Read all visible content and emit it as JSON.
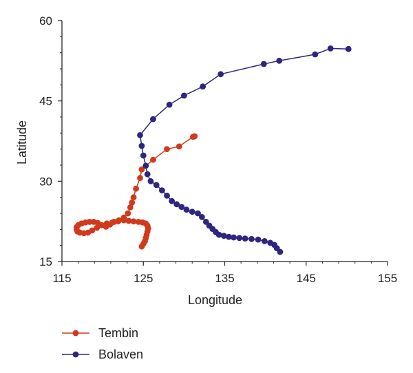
{
  "chart_data": {
    "type": "line",
    "xlabel": "Longitude",
    "ylabel": "Latitude",
    "xlim": [
      115,
      155
    ],
    "ylim": [
      15,
      60
    ],
    "xticks": [
      115,
      125,
      135,
      145,
      155
    ],
    "yticks": [
      15,
      30,
      45,
      60
    ],
    "xtick_labels": [
      "115",
      "125",
      "135",
      "145",
      "155"
    ],
    "ytick_labels": [
      "15",
      "30",
      "45",
      "60"
    ],
    "grid": false,
    "legend_position": "bottom-left",
    "series": [
      {
        "name": "Tembin",
        "color": "#d03a1c",
        "points": [
          [
            124.8,
            17.8
          ],
          [
            125.0,
            18.3
          ],
          [
            125.2,
            18.8
          ],
          [
            125.3,
            19.4
          ],
          [
            125.4,
            20.0
          ],
          [
            125.5,
            20.6
          ],
          [
            125.6,
            21.2
          ],
          [
            125.5,
            21.7
          ],
          [
            125.3,
            22.1
          ],
          [
            124.9,
            22.3
          ],
          [
            124.4,
            22.4
          ],
          [
            123.8,
            22.5
          ],
          [
            123.2,
            22.6
          ],
          [
            122.6,
            22.7
          ],
          [
            122.0,
            22.7
          ],
          [
            121.4,
            22.4
          ],
          [
            120.9,
            21.9
          ],
          [
            120.4,
            21.5
          ],
          [
            119.9,
            21.8
          ],
          [
            119.4,
            22.2
          ],
          [
            118.9,
            22.4
          ],
          [
            118.4,
            22.4
          ],
          [
            117.9,
            22.3
          ],
          [
            117.4,
            22.1
          ],
          [
            117.0,
            21.8
          ],
          [
            116.8,
            21.4
          ],
          [
            116.8,
            21.0
          ],
          [
            116.9,
            20.6
          ],
          [
            117.2,
            20.4
          ],
          [
            117.7,
            20.3
          ],
          [
            118.2,
            20.4
          ],
          [
            118.7,
            20.8
          ],
          [
            119.3,
            21.3
          ],
          [
            119.8,
            21.8
          ],
          [
            120.5,
            22.1
          ],
          [
            121.2,
            22.3
          ],
          [
            121.9,
            22.5
          ],
          [
            122.6,
            23.2
          ],
          [
            123.1,
            24.0
          ],
          [
            123.4,
            25.1
          ],
          [
            123.6,
            26.0
          ],
          [
            123.8,
            27.0
          ],
          [
            124.1,
            28.6
          ],
          [
            124.6,
            30.6
          ],
          [
            124.8,
            32.2
          ],
          [
            126.2,
            34.0
          ],
          [
            127.9,
            36.0
          ],
          [
            129.4,
            36.5
          ],
          [
            131.1,
            38.3
          ],
          [
            131.3,
            38.4
          ]
        ]
      },
      {
        "name": "Bolaven",
        "color": "#2e2581",
        "points": [
          [
            141.8,
            16.8
          ],
          [
            141.4,
            17.5
          ],
          [
            141.1,
            18.1
          ],
          [
            140.6,
            18.5
          ],
          [
            139.9,
            18.8
          ],
          [
            139.1,
            19.1
          ],
          [
            138.3,
            19.2
          ],
          [
            137.5,
            19.3
          ],
          [
            136.8,
            19.4
          ],
          [
            136.1,
            19.5
          ],
          [
            135.5,
            19.6
          ],
          [
            134.9,
            19.8
          ],
          [
            134.3,
            20.0
          ],
          [
            133.9,
            20.5
          ],
          [
            133.5,
            21.1
          ],
          [
            133.1,
            21.7
          ],
          [
            132.7,
            22.4
          ],
          [
            132.2,
            23.3
          ],
          [
            131.7,
            24.0
          ],
          [
            131.0,
            24.3
          ],
          [
            130.3,
            24.7
          ],
          [
            129.7,
            25.2
          ],
          [
            129.1,
            25.7
          ],
          [
            128.5,
            26.3
          ],
          [
            127.9,
            27.3
          ],
          [
            127.3,
            28.3
          ],
          [
            126.6,
            29.3
          ],
          [
            125.9,
            30.0
          ],
          [
            125.5,
            31.3
          ],
          [
            125.3,
            32.9
          ],
          [
            125.0,
            34.8
          ],
          [
            124.8,
            36.6
          ],
          [
            124.6,
            38.6
          ],
          [
            126.2,
            41.6
          ],
          [
            128.2,
            44.3
          ],
          [
            130.0,
            46.0
          ],
          [
            132.3,
            47.7
          ],
          [
            134.5,
            50.0
          ],
          [
            139.8,
            51.9
          ],
          [
            141.7,
            52.5
          ],
          [
            146.1,
            53.7
          ],
          [
            148.0,
            54.8
          ],
          [
            150.2,
            54.7
          ]
        ]
      }
    ]
  }
}
